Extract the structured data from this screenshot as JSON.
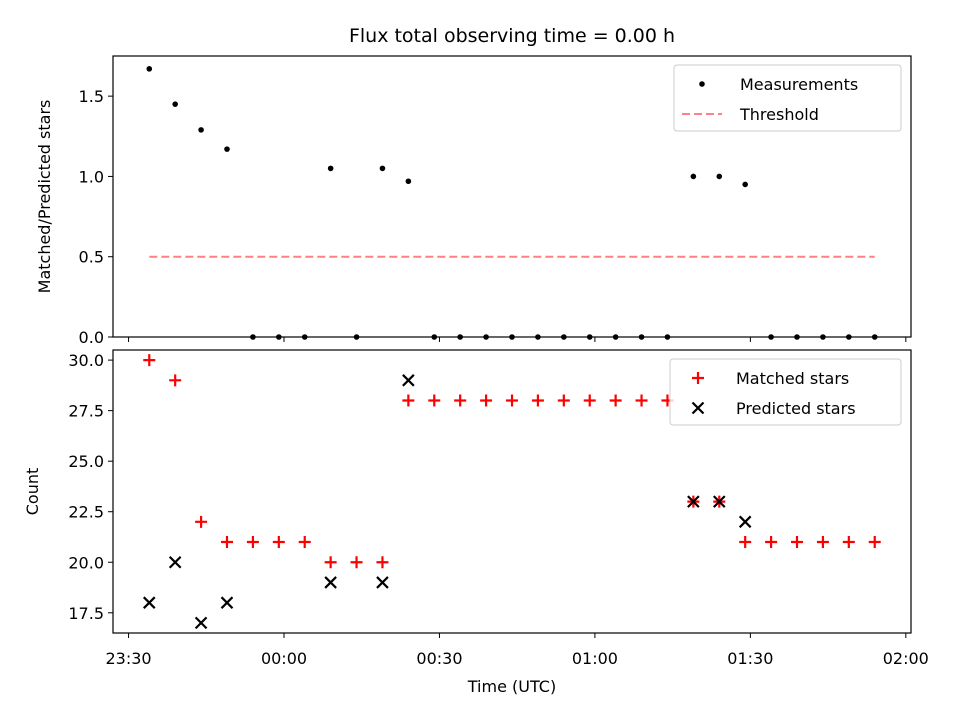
{
  "title": "Flux total observing time = 0.00 h",
  "colors": {
    "measurement": "#000000",
    "threshold": "#ff8080",
    "matched": "#ff0000",
    "predicted": "#000000"
  },
  "chart_data": [
    {
      "type": "scatter",
      "ylabel": "Matched/Predicted stars",
      "xlim": [
        "23:27",
        "02:01"
      ],
      "ylim": [
        0,
        1.75
      ],
      "yticks": [
        0.0,
        0.5,
        1.0,
        1.5
      ],
      "ytick_labels": [
        "0.0",
        "0.5",
        "1.0",
        "1.5"
      ],
      "grid": false,
      "legend_position": "upper right",
      "series": [
        {
          "name": "Measurements",
          "marker": "dot",
          "points": [
            [
              "23:34",
              1.67
            ],
            [
              "23:39",
              1.45
            ],
            [
              "23:44",
              1.29
            ],
            [
              "23:49",
              1.17
            ],
            [
              "23:54",
              0.0
            ],
            [
              "23:59",
              0.0
            ],
            [
              "00:04",
              0.0
            ],
            [
              "00:09",
              1.05
            ],
            [
              "00:14",
              0.0
            ],
            [
              "00:19",
              1.05
            ],
            [
              "00:24",
              0.97
            ],
            [
              "00:29",
              0.0
            ],
            [
              "00:34",
              0.0
            ],
            [
              "00:39",
              0.0
            ],
            [
              "00:44",
              0.0
            ],
            [
              "00:49",
              0.0
            ],
            [
              "00:54",
              0.0
            ],
            [
              "00:59",
              0.0
            ],
            [
              "01:04",
              0.0
            ],
            [
              "01:09",
              0.0
            ],
            [
              "01:14",
              0.0
            ],
            [
              "01:19",
              1.0
            ],
            [
              "01:24",
              1.0
            ],
            [
              "01:29",
              0.95
            ],
            [
              "01:34",
              0.0
            ],
            [
              "01:39",
              0.0
            ],
            [
              "01:44",
              0.0
            ],
            [
              "01:49",
              0.0
            ],
            [
              "01:54",
              0.0
            ]
          ]
        },
        {
          "name": "Threshold",
          "marker": "dashed-line",
          "points": [
            [
              "23:34",
              0.5
            ],
            [
              "01:54",
              0.5
            ]
          ]
        }
      ]
    },
    {
      "type": "scatter",
      "xlabel": "Time (UTC)",
      "ylabel": "Count",
      "xlim": [
        "23:27",
        "02:01"
      ],
      "ylim": [
        16.5,
        30.5
      ],
      "xticks": [
        "23:30",
        "00:00",
        "00:30",
        "01:00",
        "01:30",
        "02:00"
      ],
      "yticks": [
        17.5,
        20.0,
        22.5,
        25.0,
        27.5,
        30.0
      ],
      "ytick_labels": [
        "17.5",
        "20.0",
        "22.5",
        "25.0",
        "27.5",
        "30.0"
      ],
      "grid": false,
      "legend_position": "upper right",
      "series": [
        {
          "name": "Matched stars",
          "marker": "plus",
          "points": [
            [
              "23:34",
              30
            ],
            [
              "23:39",
              29
            ],
            [
              "23:44",
              22
            ],
            [
              "23:49",
              21
            ],
            [
              "23:54",
              21
            ],
            [
              "23:59",
              21
            ],
            [
              "00:04",
              21
            ],
            [
              "00:09",
              20
            ],
            [
              "00:14",
              20
            ],
            [
              "00:19",
              20
            ],
            [
              "00:24",
              28
            ],
            [
              "00:29",
              28
            ],
            [
              "00:34",
              28
            ],
            [
              "00:39",
              28
            ],
            [
              "00:44",
              28
            ],
            [
              "00:49",
              28
            ],
            [
              "00:54",
              28
            ],
            [
              "00:59",
              28
            ],
            [
              "01:04",
              28
            ],
            [
              "01:09",
              28
            ],
            [
              "01:14",
              28
            ],
            [
              "01:19",
              23
            ],
            [
              "01:24",
              23
            ],
            [
              "01:29",
              21
            ],
            [
              "01:34",
              21
            ],
            [
              "01:39",
              21
            ],
            [
              "01:44",
              21
            ],
            [
              "01:49",
              21
            ],
            [
              "01:54",
              21
            ]
          ]
        },
        {
          "name": "Predicted stars",
          "marker": "x",
          "points": [
            [
              "23:34",
              18
            ],
            [
              "23:39",
              20
            ],
            [
              "23:44",
              17
            ],
            [
              "23:49",
              18
            ],
            [
              "00:09",
              19
            ],
            [
              "00:19",
              19
            ],
            [
              "00:24",
              29
            ],
            [
              "01:19",
              23
            ],
            [
              "01:24",
              23
            ],
            [
              "01:29",
              22
            ]
          ]
        }
      ]
    }
  ]
}
